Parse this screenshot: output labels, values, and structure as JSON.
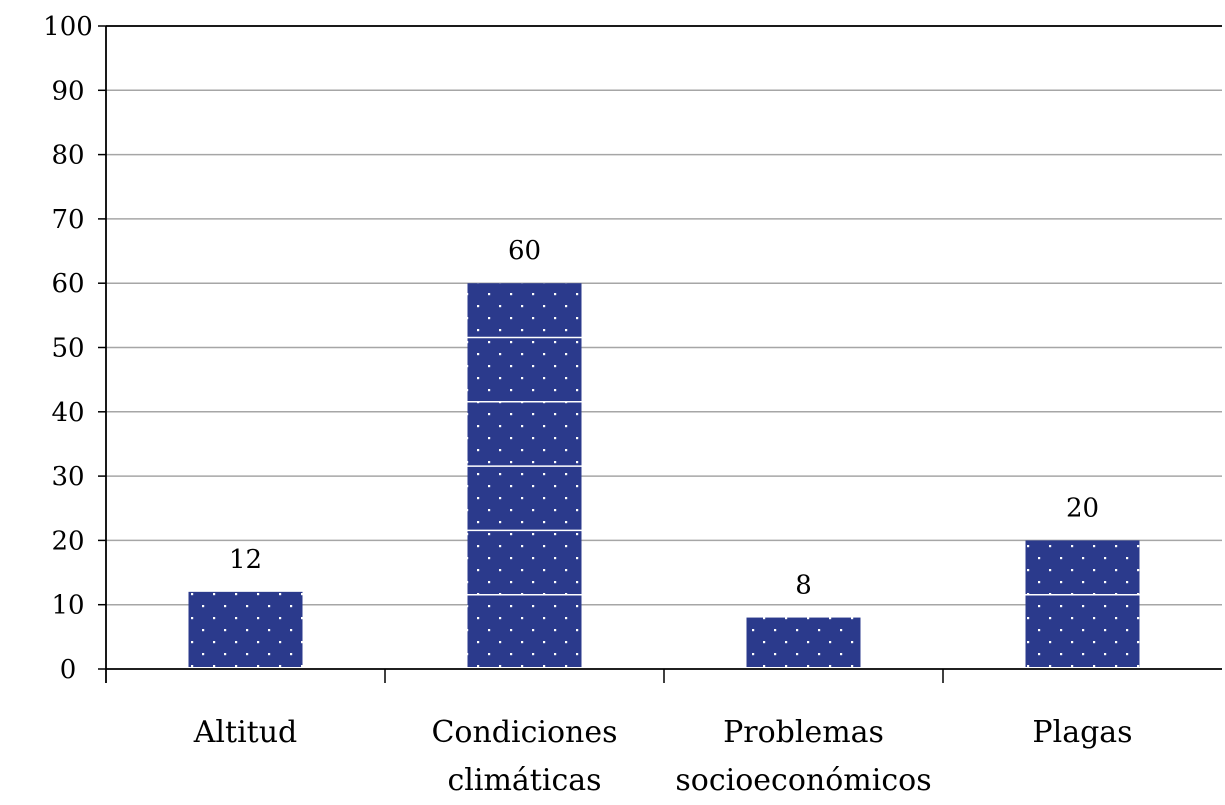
{
  "chart_data": {
    "type": "bar",
    "categories": [
      [
        "Altitud"
      ],
      [
        "Condiciones",
        "climáticas"
      ],
      [
        "Problemas",
        "socioeconómicos"
      ],
      [
        "Plagas"
      ]
    ],
    "values": [
      12,
      60,
      8,
      20
    ],
    "data_labels": [
      "12",
      "60",
      "8",
      "20"
    ],
    "yticks": [
      "0",
      "10",
      "20",
      "30",
      "40",
      "50",
      "60",
      "70",
      "80",
      "90",
      "100"
    ],
    "ylim": [
      0,
      100
    ],
    "title": "",
    "xlabel": "",
    "ylabel": "",
    "grid": true,
    "legend": "none",
    "bar_color": "#2b3a8c",
    "dot_color": "#ffffff",
    "gridline_color": "#a6a6a6"
  }
}
